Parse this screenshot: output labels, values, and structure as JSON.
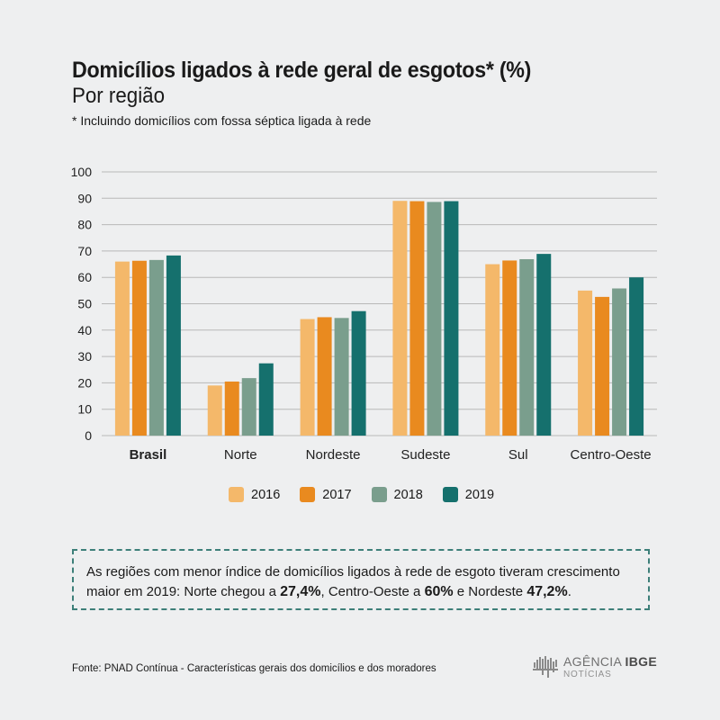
{
  "header": {
    "title": "Domicílios ligados à rede geral de esgotos* (%)",
    "subtitle": "Por região",
    "note": "* Incluindo domicílios com fossa séptica ligada à rede"
  },
  "chart_data": {
    "type": "bar",
    "categories": [
      "Brasil",
      "Norte",
      "Nordeste",
      "Sudeste",
      "Sul",
      "Centro-Oeste"
    ],
    "bold_category": "Brasil",
    "series": [
      {
        "name": "2016",
        "color": "#f4b86a",
        "values": [
          66.0,
          19.0,
          44.2,
          89.0,
          65.0,
          55.0
        ]
      },
      {
        "name": "2017",
        "color": "#e98a1f",
        "values": [
          66.3,
          20.5,
          44.9,
          88.9,
          66.4,
          52.6
        ]
      },
      {
        "name": "2018",
        "color": "#7a9e8d",
        "values": [
          66.6,
          21.8,
          44.6,
          88.6,
          66.9,
          55.8
        ]
      },
      {
        "name": "2019",
        "color": "#15706d",
        "values": [
          68.3,
          27.4,
          47.2,
          88.9,
          68.9,
          60.0
        ]
      }
    ],
    "ylim": [
      0,
      100
    ],
    "yticks": [
      0,
      10,
      20,
      30,
      40,
      50,
      60,
      70,
      80,
      90,
      100
    ],
    "grid": true,
    "legend_position": "bottom"
  },
  "callout": {
    "text_1": "As regiões com menor índice de domicílios ligados à rede de esgoto tiveram crescimento maior em 2019: Norte chegou a ",
    "value_norte": "27,4%",
    "text_2": ", Centro-Oeste a ",
    "value_centro_oeste": "60%",
    "text_3": " e Nordeste ",
    "value_nordeste": "47,2%",
    "text_4": "."
  },
  "footer": {
    "source": "Fonte: PNAD Contínua - Características gerais dos domicílios e dos moradores",
    "logo_line1_a": "AGÊNCIA",
    "logo_line1_b": "IBGE",
    "logo_line2": "NOTÍCIAS"
  },
  "colors": {
    "background": "#eeeff0",
    "grid": "#b8b8b8",
    "callout_border": "#3d7f79"
  }
}
